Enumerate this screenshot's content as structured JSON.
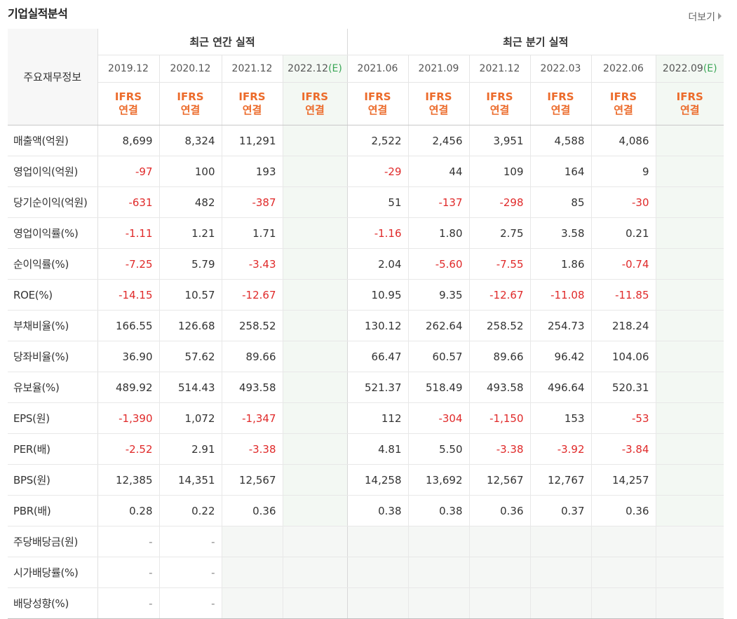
{
  "header": {
    "title": "기업실적분석",
    "more_label": "더보기"
  },
  "table": {
    "corner_label": "주요재무정보",
    "group_annual": "최근 연간 실적",
    "group_quarter": "최근 분기 실적",
    "periods": [
      {
        "label": "2019.12",
        "est": ""
      },
      {
        "label": "2020.12",
        "est": ""
      },
      {
        "label": "2021.12",
        "est": ""
      },
      {
        "label": "2022.12",
        "est": "(E)"
      },
      {
        "label": "2021.06",
        "est": ""
      },
      {
        "label": "2021.09",
        "est": ""
      },
      {
        "label": "2021.12",
        "est": ""
      },
      {
        "label": "2022.03",
        "est": ""
      },
      {
        "label": "2022.06",
        "est": ""
      },
      {
        "label": "2022.09",
        "est": "(E)"
      }
    ],
    "ifrs_line1": "IFRS",
    "ifrs_line2": "연결",
    "rows": [
      {
        "label": "매출액(억원)",
        "values": [
          "8,699",
          "8,324",
          "11,291",
          "",
          "2,522",
          "2,456",
          "3,951",
          "4,588",
          "4,086",
          ""
        ]
      },
      {
        "label": "영업이익(억원)",
        "values": [
          "-97",
          "100",
          "193",
          "",
          "-29",
          "44",
          "109",
          "164",
          "9",
          ""
        ]
      },
      {
        "label": "당기순이익(억원)",
        "values": [
          "-631",
          "482",
          "-387",
          "",
          "51",
          "-137",
          "-298",
          "85",
          "-30",
          ""
        ]
      },
      {
        "label": "영업이익률(%)",
        "values": [
          "-1.11",
          "1.21",
          "1.71",
          "",
          "-1.16",
          "1.80",
          "2.75",
          "3.58",
          "0.21",
          ""
        ]
      },
      {
        "label": "순이익률(%)",
        "values": [
          "-7.25",
          "5.79",
          "-3.43",
          "",
          "2.04",
          "-5.60",
          "-7.55",
          "1.86",
          "-0.74",
          ""
        ]
      },
      {
        "label": "ROE(%)",
        "values": [
          "-14.15",
          "10.57",
          "-12.67",
          "",
          "10.95",
          "9.35",
          "-12.67",
          "-11.08",
          "-11.85",
          ""
        ]
      },
      {
        "label": "부채비율(%)",
        "values": [
          "166.55",
          "126.68",
          "258.52",
          "",
          "130.12",
          "262.64",
          "258.52",
          "254.73",
          "218.24",
          ""
        ]
      },
      {
        "label": "당좌비율(%)",
        "values": [
          "36.90",
          "57.62",
          "89.66",
          "",
          "66.47",
          "60.57",
          "89.66",
          "96.42",
          "104.06",
          ""
        ]
      },
      {
        "label": "유보율(%)",
        "values": [
          "489.92",
          "514.43",
          "493.58",
          "",
          "521.37",
          "518.49",
          "493.58",
          "496.64",
          "520.31",
          ""
        ]
      },
      {
        "label": "EPS(원)",
        "values": [
          "-1,390",
          "1,072",
          "-1,347",
          "",
          "112",
          "-304",
          "-1,150",
          "153",
          "-53",
          ""
        ]
      },
      {
        "label": "PER(배)",
        "values": [
          "-2.52",
          "2.91",
          "-3.38",
          "",
          "4.81",
          "5.50",
          "-3.38",
          "-3.92",
          "-3.84",
          ""
        ]
      },
      {
        "label": "BPS(원)",
        "values": [
          "12,385",
          "14,351",
          "12,567",
          "",
          "14,258",
          "13,692",
          "12,567",
          "12,767",
          "14,257",
          ""
        ]
      },
      {
        "label": "PBR(배)",
        "values": [
          "0.28",
          "0.22",
          "0.36",
          "",
          "0.38",
          "0.38",
          "0.36",
          "0.37",
          "0.36",
          ""
        ]
      },
      {
        "label": "주당배당금(원)",
        "values": [
          "-",
          "-",
          "",
          "",
          "",
          "",
          "",
          "",
          "",
          ""
        ]
      },
      {
        "label": "시가배당률(%)",
        "values": [
          "-",
          "-",
          "",
          "",
          "",
          "",
          "",
          "",
          "",
          ""
        ]
      },
      {
        "label": "배당성향(%)",
        "values": [
          "-",
          "-",
          "",
          "",
          "",
          "",
          "",
          "",
          "",
          ""
        ]
      }
    ]
  },
  "colors": {
    "negative": "#e02a2a",
    "ifrs": "#ec6b2b",
    "estimate": "#3aa656"
  }
}
